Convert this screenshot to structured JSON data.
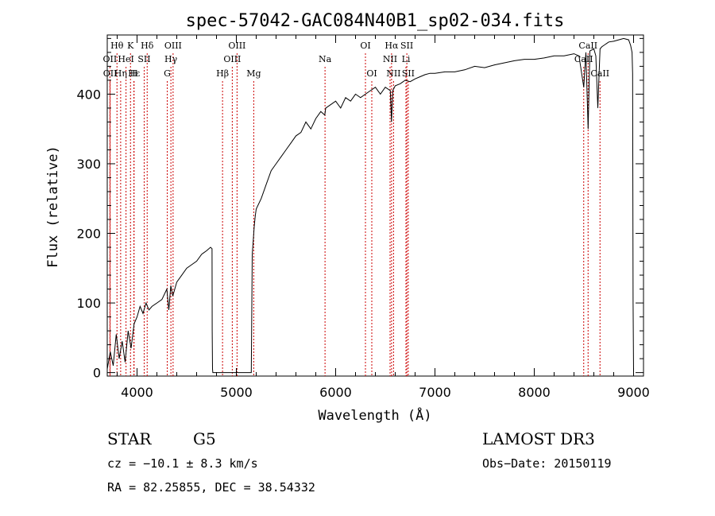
{
  "chart_data": {
    "type": "line",
    "title": "spec-57042-GAC084N40B1_sp02-034.fits",
    "xlabel": "Wavelength (Å)",
    "ylabel": "Flux (relative)",
    "xlim": [
      3700,
      9100
    ],
    "ylim": [
      -5,
      485
    ],
    "xticks": [
      4000,
      5000,
      6000,
      7000,
      8000,
      9000
    ],
    "yticks": [
      0,
      100,
      200,
      300,
      400
    ],
    "series": [
      {
        "name": "flux",
        "x": [
          3700,
          3730,
          3760,
          3790,
          3820,
          3850,
          3880,
          3910,
          3940,
          3970,
          4000,
          4030,
          4060,
          4090,
          4120,
          4150,
          4200,
          4250,
          4300,
          4320,
          4340,
          4360,
          4400,
          4450,
          4500,
          4550,
          4600,
          4650,
          4700,
          4740,
          4755,
          4757,
          4760,
          4763,
          4766,
          4769,
          5150,
          5160,
          5170,
          5180,
          5190,
          5200,
          5250,
          5300,
          5350,
          5400,
          5450,
          5500,
          5550,
          5600,
          5650,
          5700,
          5750,
          5800,
          5850,
          5890,
          5900,
          5950,
          6000,
          6050,
          6100,
          6150,
          6200,
          6250,
          6300,
          6350,
          6400,
          6450,
          6500,
          6550,
          6562,
          6575,
          6600,
          6650,
          6700,
          6750,
          6800,
          6850,
          6900,
          6950,
          7000,
          7100,
          7200,
          7300,
          7400,
          7500,
          7600,
          7700,
          7800,
          7900,
          8000,
          8100,
          8200,
          8300,
          8400,
          8450,
          8498,
          8520,
          8542,
          8560,
          8600,
          8620,
          8640,
          8662,
          8680,
          8700,
          8750,
          8800,
          8850,
          8900,
          8950,
          8970,
          8985,
          8990,
          8995,
          9000
        ],
        "values": [
          5,
          30,
          10,
          55,
          20,
          45,
          15,
          60,
          35,
          70,
          80,
          95,
          85,
          100,
          90,
          95,
          100,
          105,
          120,
          90,
          125,
          110,
          130,
          140,
          150,
          155,
          160,
          170,
          175,
          180,
          178,
          60,
          5,
          0,
          0,
          0,
          0,
          170,
          190,
          210,
          225,
          235,
          250,
          270,
          290,
          300,
          310,
          320,
          330,
          340,
          345,
          360,
          350,
          365,
          375,
          370,
          380,
          385,
          390,
          380,
          395,
          390,
          400,
          395,
          400,
          405,
          410,
          400,
          410,
          405,
          360,
          405,
          412,
          415,
          420,
          418,
          422,
          425,
          428,
          430,
          430,
          432,
          432,
          435,
          440,
          438,
          442,
          445,
          448,
          450,
          450,
          452,
          455,
          455,
          458,
          455,
          410,
          460,
          350,
          462,
          465,
          455,
          380,
          465,
          468,
          470,
          475,
          476,
          478,
          480,
          478,
          470,
          460,
          430,
          100,
          0
        ]
      }
    ],
    "lines": [
      {
        "name": "Hθ",
        "wave": 3798,
        "row": 1
      },
      {
        "name": "OII",
        "wave": 3727,
        "row": 2
      },
      {
        "name": "OII",
        "wave": 3729,
        "row": 3
      },
      {
        "name": "Hε",
        "wave": 3970,
        "row": 3
      },
      {
        "name": "Hη",
        "wave": 3835,
        "row": 3
      },
      {
        "name": "HeI",
        "wave": 3889,
        "row": 2
      },
      {
        "name": "K",
        "wave": 3934,
        "row": 1
      },
      {
        "name": "SII",
        "wave": 4072,
        "row": 2
      },
      {
        "name": "H",
        "wave": 3968,
        "row": 3
      },
      {
        "name": "Hδ",
        "wave": 4102,
        "row": 1
      },
      {
        "name": "OIII",
        "wave": 4363,
        "row": 1
      },
      {
        "name": "Hγ",
        "wave": 4341,
        "row": 2
      },
      {
        "name": "G",
        "wave": 4304,
        "row": 3
      },
      {
        "name": "Hβ",
        "wave": 4861,
        "row": 3
      },
      {
        "name": "OIII",
        "wave": 5007,
        "row": 1
      },
      {
        "name": "OIII",
        "wave": 4959,
        "row": 2
      },
      {
        "name": "Mg",
        "wave": 5175,
        "row": 3
      },
      {
        "name": "Na",
        "wave": 5893,
        "row": 2
      },
      {
        "name": "OI",
        "wave": 6300,
        "row": 1
      },
      {
        "name": "OI",
        "wave": 6364,
        "row": 3
      },
      {
        "name": "Hα",
        "wave": 6563,
        "row": 1
      },
      {
        "name": "NII",
        "wave": 6548,
        "row": 2
      },
      {
        "name": "NII",
        "wave": 6583,
        "row": 3
      },
      {
        "name": "SII",
        "wave": 6717,
        "row": 1
      },
      {
        "name": "Li",
        "wave": 6708,
        "row": 2
      },
      {
        "name": "SII",
        "wave": 6731,
        "row": 3
      },
      {
        "name": "CaII",
        "wave": 8542,
        "row": 1
      },
      {
        "name": "CaII",
        "wave": 8498,
        "row": 2
      },
      {
        "name": "CaII",
        "wave": 8662,
        "row": 3
      }
    ]
  },
  "info": {
    "class": "STAR",
    "subclass": "G5",
    "survey": "LAMOST DR3",
    "cz": "cz = −10.1 ± 8.3 km/s",
    "obs_date": "Obs−Date: 20150119",
    "coords": "RA =  82.25855, DEC =  38.54332"
  },
  "colors": {
    "spectrum": "#000000",
    "line_marker": "#cc0000",
    "axis": "#000000"
  }
}
